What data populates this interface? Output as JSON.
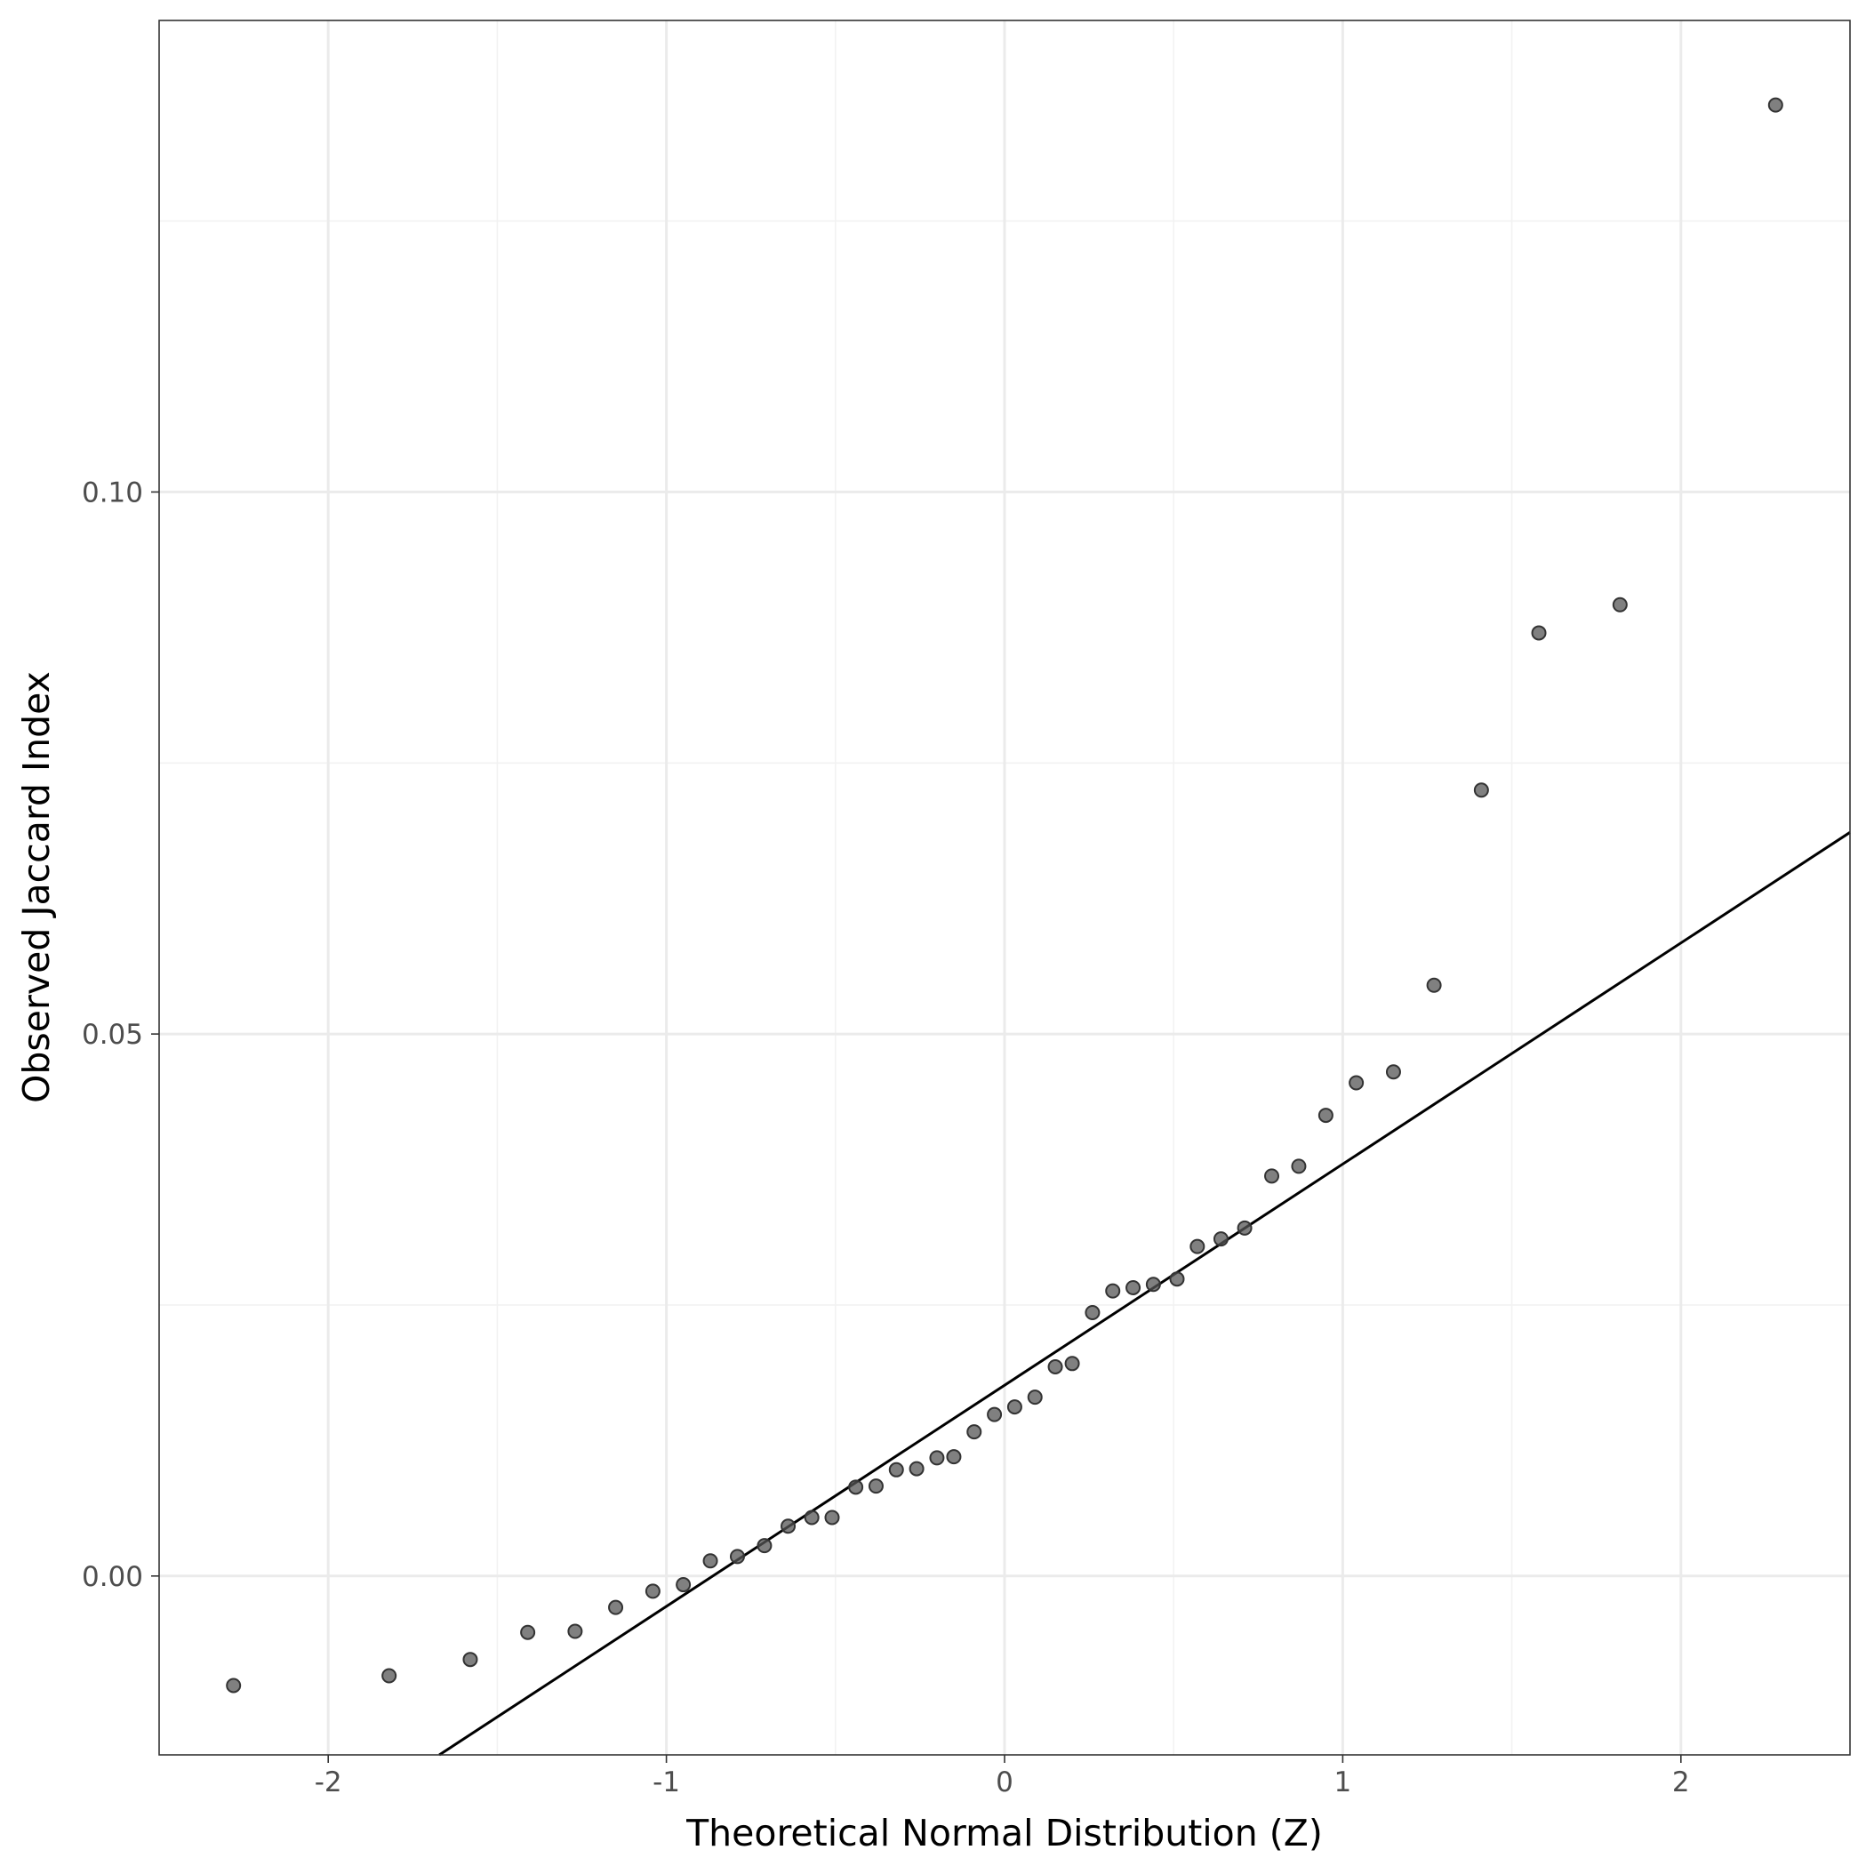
{
  "chart_data": {
    "type": "scatter",
    "title": "",
    "xlabel": "Theoretical Normal Distribution (Z)",
    "ylabel": "Observed Jaccard Index",
    "xlim": [
      -2.5,
      2.5
    ],
    "ylim": [
      -0.0165,
      0.1435
    ],
    "x_ticks": [
      {
        "value": -2,
        "label": "-2"
      },
      {
        "value": -1,
        "label": "-1"
      },
      {
        "value": 0,
        "label": "0"
      },
      {
        "value": 1,
        "label": "1"
      },
      {
        "value": 2,
        "label": "2"
      }
    ],
    "x_minor_ticks": [
      -1.5,
      -0.5,
      0.5,
      1.5
    ],
    "y_ticks": [
      {
        "value": 0.0,
        "label": "0.00"
      },
      {
        "value": 0.05,
        "label": "0.05"
      },
      {
        "value": 0.1,
        "label": "0.10"
      }
    ],
    "y_minor_ticks": [
      0.025,
      0.075,
      0.125
    ],
    "grid": true,
    "point_color": "#555555",
    "point_fill_opacity": 0.75,
    "line_color": "#000000",
    "reference_line": {
      "slope": 0.0204,
      "intercept": 0.0176
    },
    "points": {
      "x": [
        -2.28,
        -1.82,
        -1.58,
        -1.41,
        -1.27,
        -1.15,
        -1.04,
        -0.95,
        -0.87,
        -0.79,
        -0.71,
        -0.64,
        -0.57,
        -0.51,
        -0.44,
        -0.38,
        -0.32,
        -0.26,
        -0.2,
        -0.15,
        -0.09,
        -0.03,
        0.03,
        0.09,
        0.15,
        0.2,
        0.26,
        0.32,
        0.38,
        0.44,
        0.51,
        0.57,
        0.64,
        0.71,
        0.79,
        0.87,
        0.95,
        1.04,
        1.15,
        1.27,
        1.41,
        1.58,
        1.82,
        2.28
      ],
      "y": [
        -0.0101,
        -0.0092,
        -0.0077,
        -0.0052,
        -0.0051,
        -0.0029,
        -0.0014,
        -0.0008,
        0.0014,
        0.0018,
        0.0028,
        0.0046,
        0.0054,
        0.0054,
        0.0082,
        0.0083,
        0.0098,
        0.0099,
        0.0109,
        0.011,
        0.0133,
        0.0149,
        0.0156,
        0.0165,
        0.0193,
        0.0196,
        0.0243,
        0.0263,
        0.0266,
        0.0269,
        0.0274,
        0.0304,
        0.0311,
        0.0321,
        0.0369,
        0.0378,
        0.0425,
        0.0455,
        0.0465,
        0.0545,
        0.0725,
        0.087,
        0.0896,
        0.1357
      ]
    }
  }
}
